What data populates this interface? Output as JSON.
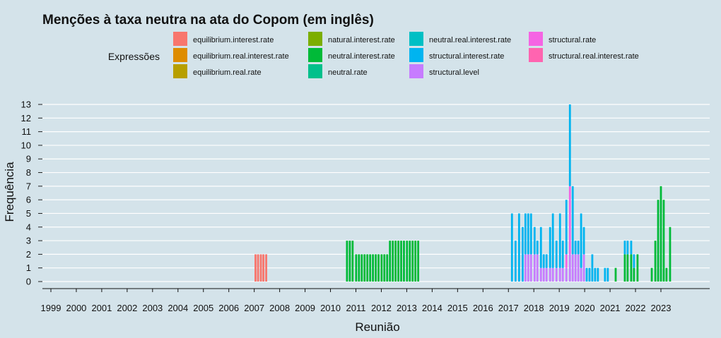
{
  "chart_data": {
    "type": "bar",
    "stacked": true,
    "title": "Menções à taxa neutra na ata do Copom (em inglês)",
    "xlabel": "Reunião",
    "ylabel": "Frequência",
    "ylim": [
      0,
      13
    ],
    "y_ticks": [
      0,
      1,
      2,
      3,
      4,
      5,
      6,
      7,
      8,
      9,
      10,
      11,
      12,
      13
    ],
    "x_ticks": [
      "1999",
      "2000",
      "2001",
      "2002",
      "2003",
      "2004",
      "2005",
      "2006",
      "2007",
      "2008",
      "2009",
      "2010",
      "2011",
      "2012",
      "2013",
      "2014",
      "2015",
      "2016",
      "2017",
      "2018",
      "2019",
      "2020",
      "2021",
      "2022",
      "2023"
    ],
    "grid": true,
    "legend": {
      "title": "Expressões",
      "placement": "top",
      "entries": [
        {
          "name": "equilibrium.interest.rate",
          "color": "#f8766d"
        },
        {
          "name": "equilibrium.real.interest.rate",
          "color": "#de8c00"
        },
        {
          "name": "equilibrium.real.rate",
          "color": "#b79f00"
        },
        {
          "name": "natural.interest.rate",
          "color": "#7cae00"
        },
        {
          "name": "neutral.interest.rate",
          "color": "#00ba38"
        },
        {
          "name": "neutral.rate",
          "color": "#00c08b"
        },
        {
          "name": "neutral.real.interest.rate",
          "color": "#00bfc4"
        },
        {
          "name": "structural.interest.rate",
          "color": "#00b4f0"
        },
        {
          "name": "structural.level",
          "color": "#c77cff"
        },
        {
          "name": "structural.rate",
          "color": "#f564e3"
        },
        {
          "name": "structural.real.interest.rate",
          "color": "#ff64b0"
        }
      ]
    },
    "bars": [
      {
        "x": 2007.05,
        "segments": [
          {
            "series": "equilibrium.interest.rate",
            "value": 2
          }
        ]
      },
      {
        "x": 2007.15,
        "segments": [
          {
            "series": "equilibrium.interest.rate",
            "value": 2
          }
        ]
      },
      {
        "x": 2007.26,
        "segments": [
          {
            "series": "equilibrium.interest.rate",
            "value": 2
          }
        ]
      },
      {
        "x": 2007.36,
        "segments": [
          {
            "series": "equilibrium.interest.rate",
            "value": 2
          }
        ]
      },
      {
        "x": 2007.47,
        "segments": [
          {
            "series": "equilibrium.interest.rate",
            "value": 2
          }
        ]
      },
      {
        "x": 2010.65,
        "segments": [
          {
            "series": "neutral.interest.rate",
            "value": 3
          }
        ]
      },
      {
        "x": 2010.76,
        "segments": [
          {
            "series": "neutral.interest.rate",
            "value": 3
          }
        ]
      },
      {
        "x": 2010.87,
        "segments": [
          {
            "series": "neutral.interest.rate",
            "value": 3
          }
        ]
      },
      {
        "x": 2011.01,
        "segments": [
          {
            "series": "neutral.interest.rate",
            "value": 2
          }
        ]
      },
      {
        "x": 2011.12,
        "segments": [
          {
            "series": "neutral.interest.rate",
            "value": 2
          }
        ]
      },
      {
        "x": 2011.23,
        "segments": [
          {
            "series": "neutral.interest.rate",
            "value": 2
          }
        ]
      },
      {
        "x": 2011.34,
        "segments": [
          {
            "series": "neutral.interest.rate",
            "value": 2
          }
        ]
      },
      {
        "x": 2011.45,
        "segments": [
          {
            "series": "neutral.interest.rate",
            "value": 2
          }
        ]
      },
      {
        "x": 2011.56,
        "segments": [
          {
            "series": "neutral.interest.rate",
            "value": 2
          }
        ]
      },
      {
        "x": 2011.67,
        "segments": [
          {
            "series": "neutral.interest.rate",
            "value": 2
          }
        ]
      },
      {
        "x": 2011.78,
        "segments": [
          {
            "series": "neutral.interest.rate",
            "value": 2
          }
        ]
      },
      {
        "x": 2011.89,
        "segments": [
          {
            "series": "neutral.interest.rate",
            "value": 2
          }
        ]
      },
      {
        "x": 2012.01,
        "segments": [
          {
            "series": "neutral.interest.rate",
            "value": 2
          }
        ]
      },
      {
        "x": 2012.12,
        "segments": [
          {
            "series": "neutral.interest.rate",
            "value": 2
          }
        ]
      },
      {
        "x": 2012.23,
        "segments": [
          {
            "series": "neutral.interest.rate",
            "value": 2
          }
        ]
      },
      {
        "x": 2012.34,
        "segments": [
          {
            "series": "neutral.interest.rate",
            "value": 3
          }
        ]
      },
      {
        "x": 2012.45,
        "segments": [
          {
            "series": "neutral.interest.rate",
            "value": 3
          }
        ]
      },
      {
        "x": 2012.56,
        "segments": [
          {
            "series": "neutral.interest.rate",
            "value": 3
          }
        ]
      },
      {
        "x": 2012.67,
        "segments": [
          {
            "series": "neutral.interest.rate",
            "value": 3
          }
        ]
      },
      {
        "x": 2012.78,
        "segments": [
          {
            "series": "neutral.interest.rate",
            "value": 3
          }
        ]
      },
      {
        "x": 2012.89,
        "segments": [
          {
            "series": "neutral.interest.rate",
            "value": 3
          }
        ]
      },
      {
        "x": 2013.01,
        "segments": [
          {
            "series": "neutral.interest.rate",
            "value": 3
          }
        ]
      },
      {
        "x": 2013.12,
        "segments": [
          {
            "series": "neutral.interest.rate",
            "value": 3
          }
        ]
      },
      {
        "x": 2013.23,
        "segments": [
          {
            "series": "neutral.interest.rate",
            "value": 3
          }
        ]
      },
      {
        "x": 2013.34,
        "segments": [
          {
            "series": "neutral.interest.rate",
            "value": 3
          }
        ]
      },
      {
        "x": 2013.45,
        "segments": [
          {
            "series": "neutral.interest.rate",
            "value": 3
          }
        ]
      },
      {
        "x": 2017.14,
        "segments": [
          {
            "series": "structural.interest.rate",
            "value": 5
          }
        ]
      },
      {
        "x": 2017.28,
        "segments": [
          {
            "series": "structural.interest.rate",
            "value": 3
          }
        ]
      },
      {
        "x": 2017.42,
        "segments": [
          {
            "series": "structural.interest.rate",
            "value": 5
          }
        ]
      },
      {
        "x": 2017.56,
        "segments": [
          {
            "series": "structural.interest.rate",
            "value": 4
          }
        ]
      },
      {
        "x": 2017.67,
        "segments": [
          {
            "series": "structural.level",
            "value": 2
          },
          {
            "series": "structural.interest.rate",
            "value": 3
          }
        ]
      },
      {
        "x": 2017.78,
        "segments": [
          {
            "series": "structural.level",
            "value": 2
          },
          {
            "series": "structural.interest.rate",
            "value": 3
          }
        ]
      },
      {
        "x": 2017.89,
        "segments": [
          {
            "series": "structural.level",
            "value": 2
          },
          {
            "series": "structural.interest.rate",
            "value": 3
          }
        ]
      },
      {
        "x": 2018.03,
        "segments": [
          {
            "series": "structural.level",
            "value": 2
          },
          {
            "series": "structural.interest.rate",
            "value": 2
          }
        ]
      },
      {
        "x": 2018.14,
        "segments": [
          {
            "series": "structural.level",
            "value": 2
          },
          {
            "series": "structural.interest.rate",
            "value": 1
          }
        ]
      },
      {
        "x": 2018.28,
        "segments": [
          {
            "series": "structural.level",
            "value": 1
          },
          {
            "series": "structural.interest.rate",
            "value": 3
          }
        ]
      },
      {
        "x": 2018.39,
        "segments": [
          {
            "series": "structural.level",
            "value": 1
          },
          {
            "series": "structural.interest.rate",
            "value": 1
          }
        ]
      },
      {
        "x": 2018.5,
        "segments": [
          {
            "series": "structural.level",
            "value": 1
          },
          {
            "series": "structural.interest.rate",
            "value": 1
          }
        ]
      },
      {
        "x": 2018.64,
        "segments": [
          {
            "series": "structural.level",
            "value": 1
          },
          {
            "series": "structural.interest.rate",
            "value": 3
          }
        ]
      },
      {
        "x": 2018.75,
        "segments": [
          {
            "series": "structural.level",
            "value": 1
          },
          {
            "series": "structural.interest.rate",
            "value": 4
          }
        ]
      },
      {
        "x": 2018.89,
        "segments": [
          {
            "series": "structural.level",
            "value": 1
          },
          {
            "series": "structural.interest.rate",
            "value": 2
          }
        ]
      },
      {
        "x": 2019.03,
        "segments": [
          {
            "series": "structural.level",
            "value": 1
          },
          {
            "series": "structural.interest.rate",
            "value": 4
          }
        ]
      },
      {
        "x": 2019.14,
        "segments": [
          {
            "series": "structural.level",
            "value": 1
          },
          {
            "series": "structural.interest.rate",
            "value": 2
          }
        ]
      },
      {
        "x": 2019.28,
        "segments": [
          {
            "series": "structural.level",
            "value": 1
          },
          {
            "series": "structural.rate",
            "value": 1
          },
          {
            "series": "structural.interest.rate",
            "value": 4
          }
        ]
      },
      {
        "x": 2019.42,
        "segments": [
          {
            "series": "structural.level",
            "value": 2
          },
          {
            "series": "structural.rate",
            "value": 5
          },
          {
            "series": "structural.interest.rate",
            "value": 6
          }
        ]
      },
      {
        "x": 2019.53,
        "segments": [
          {
            "series": "structural.level",
            "value": 2
          },
          {
            "series": "structural.interest.rate",
            "value": 5
          }
        ]
      },
      {
        "x": 2019.64,
        "segments": [
          {
            "series": "structural.level",
            "value": 2
          },
          {
            "series": "structural.interest.rate",
            "value": 1
          }
        ]
      },
      {
        "x": 2019.75,
        "segments": [
          {
            "series": "structural.level",
            "value": 2
          },
          {
            "series": "structural.interest.rate",
            "value": 1
          }
        ]
      },
      {
        "x": 2019.86,
        "segments": [
          {
            "series": "structural.level",
            "value": 1
          },
          {
            "series": "structural.interest.rate",
            "value": 4
          }
        ]
      },
      {
        "x": 2019.97,
        "segments": [
          {
            "series": "structural.level",
            "value": 2
          },
          {
            "series": "structural.interest.rate",
            "value": 2
          }
        ]
      },
      {
        "x": 2020.08,
        "segments": [
          {
            "series": "structural.interest.rate",
            "value": 1
          }
        ]
      },
      {
        "x": 2020.19,
        "segments": [
          {
            "series": "structural.interest.rate",
            "value": 1
          }
        ]
      },
      {
        "x": 2020.3,
        "segments": [
          {
            "series": "structural.interest.rate",
            "value": 2
          }
        ]
      },
      {
        "x": 2020.41,
        "segments": [
          {
            "series": "structural.interest.rate",
            "value": 1
          }
        ]
      },
      {
        "x": 2020.52,
        "segments": [
          {
            "series": "structural.interest.rate",
            "value": 1
          }
        ]
      },
      {
        "x": 2020.8,
        "segments": [
          {
            "series": "structural.interest.rate",
            "value": 1
          }
        ]
      },
      {
        "x": 2020.91,
        "segments": [
          {
            "series": "structural.interest.rate",
            "value": 1
          }
        ]
      },
      {
        "x": 2021.22,
        "segments": [
          {
            "series": "neutral.interest.rate",
            "value": 1
          }
        ]
      },
      {
        "x": 2021.58,
        "segments": [
          {
            "series": "neutral.interest.rate",
            "value": 2
          },
          {
            "series": "structural.interest.rate",
            "value": 1
          }
        ]
      },
      {
        "x": 2021.69,
        "segments": [
          {
            "series": "neutral.interest.rate",
            "value": 2
          },
          {
            "series": "structural.interest.rate",
            "value": 1
          }
        ]
      },
      {
        "x": 2021.83,
        "segments": [
          {
            "series": "neutral.interest.rate",
            "value": 2
          },
          {
            "series": "structural.interest.rate",
            "value": 1
          }
        ]
      },
      {
        "x": 2021.94,
        "segments": [
          {
            "series": "neutral.interest.rate",
            "value": 1
          },
          {
            "series": "structural.interest.rate",
            "value": 1
          }
        ]
      },
      {
        "x": 2022.08,
        "segments": [
          {
            "series": "neutral.interest.rate",
            "value": 2
          }
        ]
      },
      {
        "x": 2022.64,
        "segments": [
          {
            "series": "neutral.interest.rate",
            "value": 1
          }
        ]
      },
      {
        "x": 2022.78,
        "segments": [
          {
            "series": "neutral.interest.rate",
            "value": 3
          }
        ]
      },
      {
        "x": 2022.89,
        "segments": [
          {
            "series": "neutral.interest.rate",
            "value": 6
          }
        ]
      },
      {
        "x": 2023.0,
        "segments": [
          {
            "series": "neutral.interest.rate",
            "value": 7
          }
        ]
      },
      {
        "x": 2023.11,
        "segments": [
          {
            "series": "neutral.interest.rate",
            "value": 6
          }
        ]
      },
      {
        "x": 2023.22,
        "segments": [
          {
            "series": "neutral.interest.rate",
            "value": 1
          }
        ]
      },
      {
        "x": 2023.36,
        "segments": [
          {
            "series": "neutral.interest.rate",
            "value": 4
          }
        ]
      }
    ]
  }
}
